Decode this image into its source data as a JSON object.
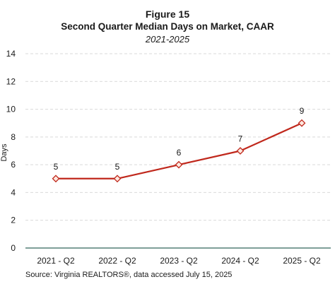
{
  "figure_label": "Figure 15",
  "source": "Source: Virginia REALTORS®, data accessed July 15, 2025",
  "colors": {
    "line": "#c0281c",
    "marker_fill": "#fde8df",
    "grid": "#d9d9d9",
    "axis": "#7f9f99"
  },
  "chart_data": {
    "type": "line",
    "title": "Second Quarter Median Days on Market, CAAR",
    "subtitle": "2021-2025",
    "xlabel": "",
    "ylabel": "Days",
    "categories": [
      "2021 - Q2",
      "2022 - Q2",
      "2023 - Q2",
      "2024 - Q2",
      "2025 - Q2"
    ],
    "series": [
      {
        "values": [
          5,
          5,
          6,
          7,
          9
        ]
      }
    ],
    "ylim": [
      0,
      14
    ],
    "yticks": [
      0,
      2,
      4,
      6,
      8,
      10,
      12,
      14
    ],
    "grid": true,
    "data_labels": true
  }
}
